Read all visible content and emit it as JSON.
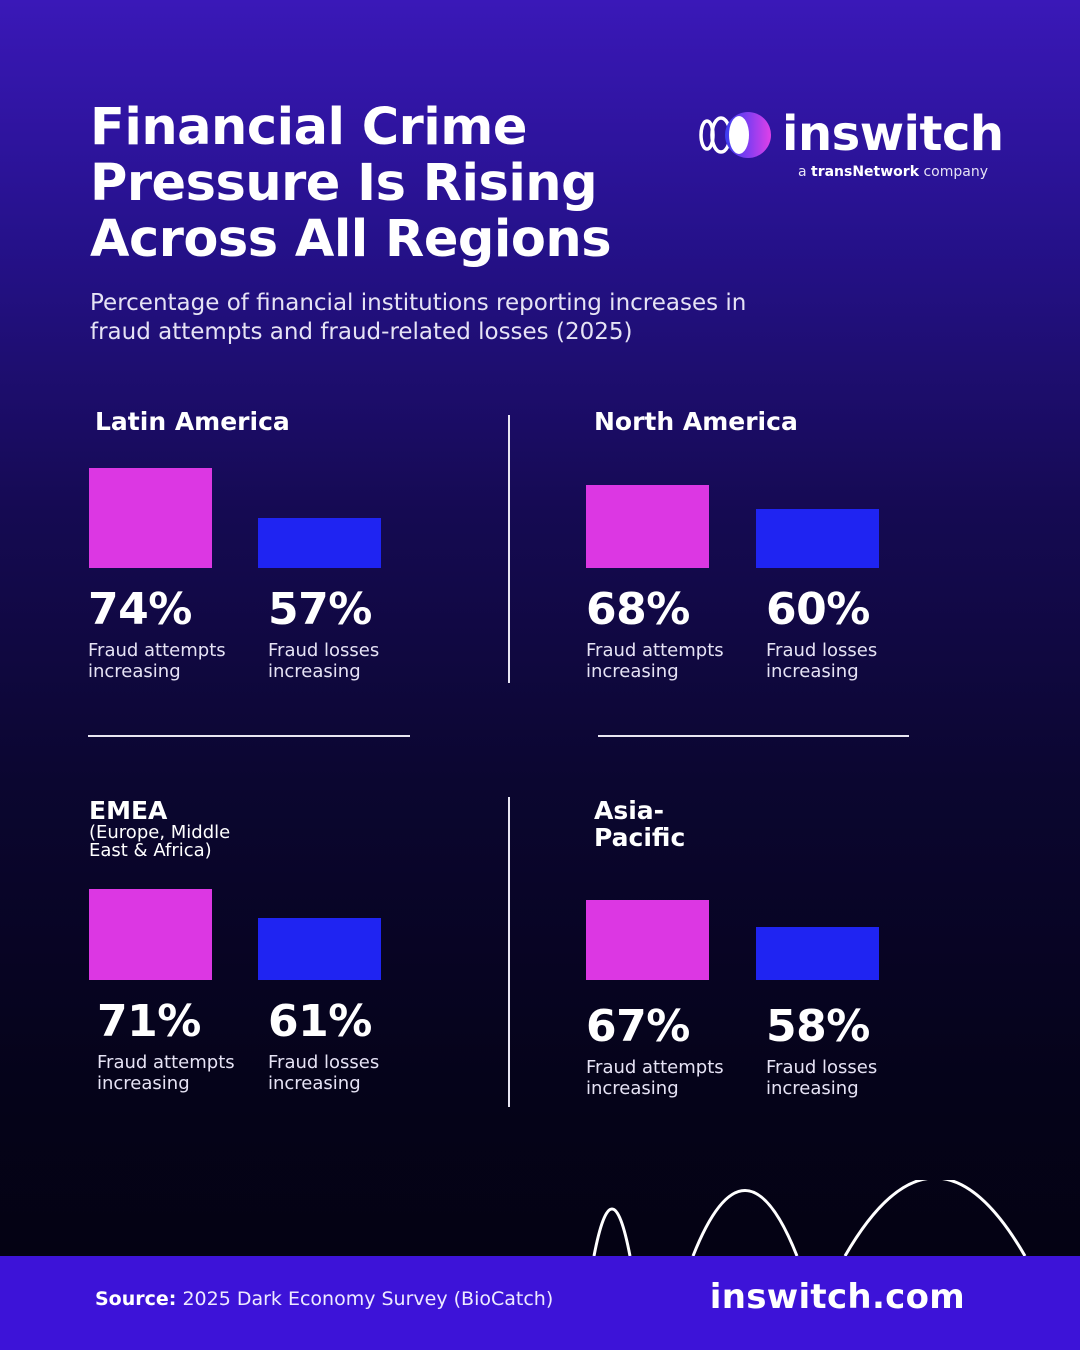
{
  "title": "Financial Crime Pressure Is Rising Across All Regions",
  "subtitle": "Percentage of financial institutions reporting increases in fraud attempts and fraud-related losses (2025)",
  "logo": {
    "wordmark": "inswitch",
    "tagline_prefix": "a",
    "tagline_brand": "transNetwork",
    "tagline_suffix": "company"
  },
  "colors": {
    "attempts": "#dc37e3",
    "losses": "#1f24f2",
    "footer": "#3d13d8"
  },
  "footer": {
    "source_label": "Source:",
    "source_text": "2025 Dark Economy Survey (BioCatch)",
    "website": "inswitch.com"
  },
  "chart_data": {
    "type": "bar",
    "title": "Financial Crime Pressure Is Rising Across All Regions",
    "subtitle": "Percentage of financial institutions reporting increases in fraud attempts and fraud-related losses (2025)",
    "unit": "%",
    "series_labels": {
      "attempts": "Fraud attempts increasing",
      "losses": "Fraud losses increasing"
    },
    "regions": [
      {
        "name": "Latin America",
        "subname": "",
        "attempts": 74,
        "losses": 57,
        "attempts_display": "74%",
        "losses_display": "57%"
      },
      {
        "name": "North America",
        "subname": "",
        "attempts": 68,
        "losses": 60,
        "attempts_display": "68%",
        "losses_display": "60%"
      },
      {
        "name": "EMEA",
        "subname": "(Europe, Middle East & Africa)",
        "attempts": 71,
        "losses": 61,
        "attempts_display": "71%",
        "losses_display": "61%"
      },
      {
        "name": "Asia-Pacific",
        "subname": "",
        "attempts": 67,
        "losses": 58,
        "attempts_display": "67%",
        "losses_display": "58%"
      }
    ]
  }
}
